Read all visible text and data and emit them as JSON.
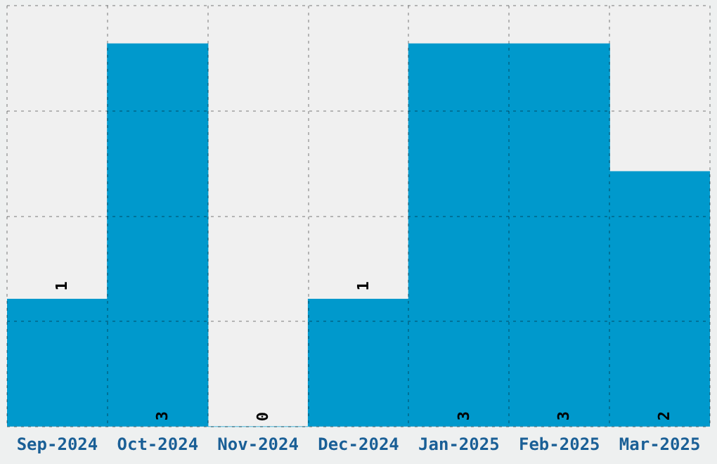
{
  "chart_data": {
    "type": "bar",
    "categories": [
      "Sep-2024",
      "Oct-2024",
      "Nov-2024",
      "Dec-2024",
      "Jan-2025",
      "Feb-2025",
      "Mar-2025"
    ],
    "values": [
      1,
      3,
      0,
      1,
      3,
      3,
      2
    ],
    "color": "#0099cc",
    "ylim": [
      0,
      3.3
    ],
    "yticks": [
      {
        "value": 0,
        "label": null
      },
      {
        "value": 0.825,
        "label": null
      },
      {
        "value": 1.65,
        "label": null
      },
      {
        "value": 2.475,
        "label": null
      },
      {
        "value": 3.3,
        "label": null
      }
    ],
    "grid": true,
    "data_labels": true,
    "tick_labels": "x"
  }
}
